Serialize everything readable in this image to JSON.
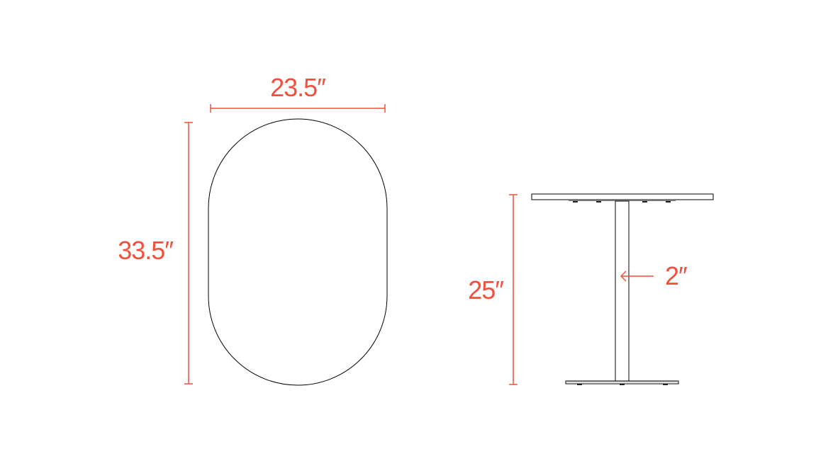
{
  "colors": {
    "dimension": "#f0503c",
    "outline": "#000000"
  },
  "top_view": {
    "width_label": "23.5″",
    "depth_label": "33.5″"
  },
  "side_view": {
    "height_label": "25″",
    "column_label": "2″"
  }
}
